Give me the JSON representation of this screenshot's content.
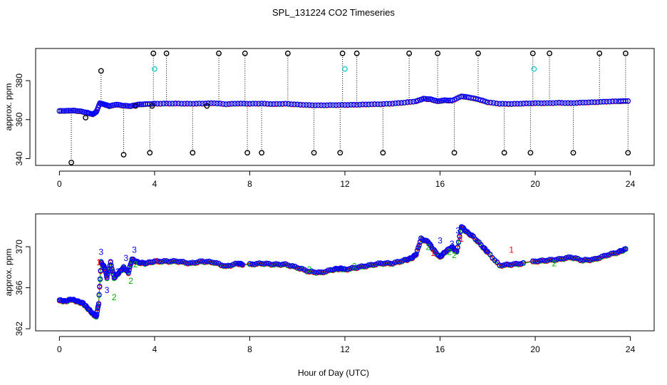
{
  "title": "SPL_131224  CO2 Timeseries",
  "xlabel": "Hour of Day (UTC)",
  "chart_data": [
    {
      "type": "scatter",
      "panel": "top",
      "ylabel": "approx. ppm",
      "xlim": [
        -1.0,
        25.0
      ],
      "ylim": [
        336.5,
        396.5
      ],
      "xticks": [
        0,
        4,
        8,
        12,
        16,
        20,
        24
      ],
      "yticks": [
        340,
        360,
        380
      ],
      "series": [
        {
          "name": "mean (blue)",
          "color": "#0000ff",
          "x": [
            0.0,
            0.3,
            0.6,
            0.9,
            1.2,
            1.4,
            1.55,
            1.7,
            1.9,
            2.1,
            2.4,
            2.7,
            3.0,
            3.3,
            3.6,
            4.0,
            4.5,
            5.0,
            5.5,
            6.0,
            6.5,
            7.0,
            7.5,
            8.0,
            8.5,
            9.0,
            9.5,
            10.0,
            10.5,
            11.0,
            11.5,
            12.0,
            12.5,
            13.0,
            13.5,
            14.0,
            14.5,
            15.0,
            15.3,
            15.6,
            15.9,
            16.2,
            16.5,
            16.9,
            17.2,
            17.6,
            18.0,
            18.5,
            19.0,
            19.5,
            20.0,
            20.5,
            21.0,
            21.5,
            22.0,
            22.5,
            23.0,
            23.5,
            23.9
          ],
          "y": [
            364.5,
            364.6,
            364.7,
            364.3,
            363.5,
            362.8,
            364.0,
            368.5,
            367.8,
            367.0,
            367.8,
            367.2,
            367.0,
            367.8,
            368.0,
            368.2,
            368.3,
            368.3,
            368.2,
            368.3,
            368.5,
            368.0,
            368.3,
            368.2,
            368.3,
            368.0,
            368.2,
            367.8,
            367.5,
            367.4,
            367.5,
            367.6,
            367.7,
            367.9,
            368.0,
            368.3,
            368.8,
            369.5,
            370.8,
            370.5,
            369.5,
            370.0,
            369.8,
            372.0,
            371.5,
            370.5,
            369.0,
            368.2,
            368.1,
            368.3,
            368.5,
            368.5,
            368.7,
            368.5,
            368.8,
            369.0,
            369.3,
            369.5,
            369.6
          ]
        }
      ],
      "outliers_black": {
        "x": [
          0.5,
          1.1,
          1.75,
          2.7,
          3.2,
          3.8,
          3.9,
          3.95,
          4.5,
          5.6,
          6.2,
          6.7,
          7.8,
          7.9,
          8.5,
          9.6,
          10.7,
          11.8,
          11.9,
          12.5,
          13.6,
          14.7,
          15.9,
          16.6,
          17.6,
          18.7,
          19.8,
          19.9,
          20.6,
          21.6,
          22.7,
          23.8,
          23.9
        ],
        "y": [
          338,
          361,
          385,
          342,
          367,
          343,
          367,
          394,
          394,
          343,
          367,
          394,
          394,
          343,
          343,
          394,
          343,
          343,
          394,
          394,
          343,
          394,
          394,
          343,
          394,
          343,
          343,
          394,
          394,
          343,
          394,
          394,
          343
        ]
      },
      "outliers_cyan": {
        "x": [
          4.0,
          12.0,
          19.95
        ],
        "y": [
          386,
          386,
          386
        ]
      }
    },
    {
      "type": "scatter",
      "panel": "bottom",
      "ylabel": "approx. ppm",
      "xlim": [
        -1.0,
        25.0
      ],
      "ylim": [
        361.8,
        373.2
      ],
      "xticks": [
        0,
        4,
        8,
        12,
        16,
        20,
        24
      ],
      "yticks": [
        362,
        366,
        370
      ],
      "series": [
        {
          "name": "mean (blue)",
          "color": "#0000ff",
          "x": [
            0.0,
            0.25,
            0.5,
            0.75,
            1.0,
            1.2,
            1.4,
            1.55,
            1.65,
            1.75,
            1.9,
            2.0,
            2.15,
            2.3,
            2.5,
            2.7,
            2.9,
            3.05,
            3.3,
            3.6,
            4.0,
            4.5,
            5.0,
            5.5,
            6.0,
            6.5,
            7.0,
            7.5,
            7.7,
            8.0,
            8.5,
            9.0,
            9.5,
            10.0,
            10.5,
            11.0,
            11.5,
            11.8,
            12.0,
            12.5,
            13.0,
            13.5,
            14.0,
            14.5,
            14.8,
            15.0,
            15.2,
            15.5,
            15.7,
            16.0,
            16.2,
            16.5,
            16.7,
            16.9,
            17.1,
            17.4,
            17.8,
            18.0,
            18.5,
            19.0,
            19.5,
            20.0,
            20.5,
            21.0,
            21.5,
            22.0,
            22.5,
            23.0,
            23.5,
            23.8
          ],
          "y": [
            364.8,
            364.7,
            364.9,
            364.7,
            364.5,
            364.0,
            363.5,
            363.2,
            364.5,
            368.5,
            368.0,
            367.0,
            368.5,
            367.0,
            367.5,
            368.0,
            367.5,
            368.8,
            368.5,
            368.4,
            368.6,
            368.6,
            368.6,
            368.4,
            368.6,
            368.5,
            368.1,
            368.4,
            368.3,
            368.3,
            368.4,
            368.3,
            368.3,
            368.0,
            367.6,
            367.5,
            367.8,
            367.9,
            367.8,
            368.0,
            368.2,
            368.4,
            368.4,
            368.7,
            368.9,
            369.3,
            370.8,
            370.5,
            369.8,
            369.0,
            369.5,
            370.0,
            369.5,
            372.0,
            371.5,
            371.0,
            370.0,
            369.5,
            368.2,
            368.3,
            368.4,
            368.6,
            368.7,
            368.8,
            369.0,
            368.7,
            368.8,
            369.2,
            369.5,
            369.8
          ]
        }
      ],
      "labels": [
        {
          "text": "3",
          "color": "#0000ff",
          "x": 1.75,
          "y": 369.2
        },
        {
          "text": "1",
          "color": "#ff0000",
          "x": 1.65,
          "y": 368.2
        },
        {
          "text": "3",
          "color": "#0000ff",
          "x": 2.0,
          "y": 365.5
        },
        {
          "text": "2",
          "color": "#00b000",
          "x": 2.3,
          "y": 364.8
        },
        {
          "text": "3",
          "color": "#0000ff",
          "x": 2.45,
          "y": 367.3
        },
        {
          "text": "3",
          "color": "#0000ff",
          "x": 2.8,
          "y": 368.6
        },
        {
          "text": "2",
          "color": "#00b000",
          "x": 3.0,
          "y": 366.4
        },
        {
          "text": "3",
          "color": "#0000ff",
          "x": 3.15,
          "y": 369.4
        },
        {
          "text": "2",
          "color": "#00b000",
          "x": 3.2,
          "y": 368.0
        },
        {
          "text": "1",
          "color": "#ff0000",
          "x": 4.1,
          "y": 368.3
        },
        {
          "text": "2",
          "color": "#00b000",
          "x": 10.5,
          "y": 367.5
        },
        {
          "text": "2",
          "color": "#00b000",
          "x": 12.4,
          "y": 367.8
        },
        {
          "text": "2",
          "color": "#00b000",
          "x": 15.5,
          "y": 369.7
        },
        {
          "text": "1",
          "color": "#ff0000",
          "x": 15.7,
          "y": 369.1
        },
        {
          "text": "3",
          "color": "#0000ff",
          "x": 16.0,
          "y": 370.3
        },
        {
          "text": "2",
          "color": "#00b000",
          "x": 16.4,
          "y": 369.2
        },
        {
          "text": "3",
          "color": "#0000ff",
          "x": 16.5,
          "y": 370.0
        },
        {
          "text": "2",
          "color": "#00b000",
          "x": 16.6,
          "y": 368.9
        },
        {
          "text": "3",
          "color": "#0000ff",
          "x": 16.75,
          "y": 371.3
        },
        {
          "text": "1",
          "color": "#ff0000",
          "x": 16.9,
          "y": 370.5
        },
        {
          "text": "1",
          "color": "#ff0000",
          "x": 19.0,
          "y": 369.4
        },
        {
          "text": "2",
          "color": "#00b000",
          "x": 20.8,
          "y": 368.1
        }
      ]
    }
  ]
}
